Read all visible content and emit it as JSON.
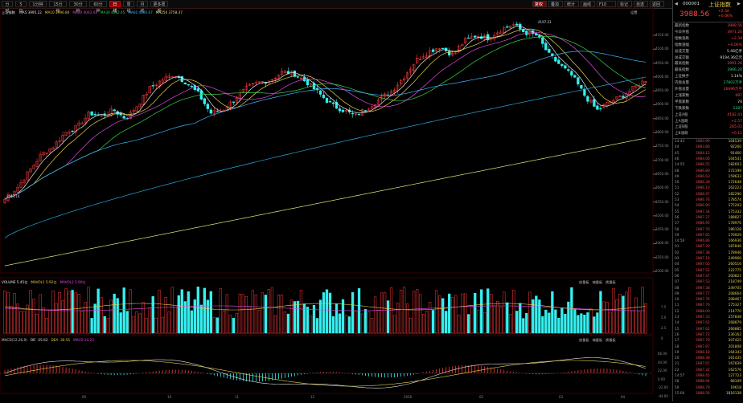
{
  "toolbar": {
    "tabs": [
      "分时",
      "5日",
      "1分钟",
      "15分钟",
      "30分钟",
      "60分钟",
      "日线",
      "周线",
      "月线",
      "更多周期"
    ],
    "active_tab": "日线",
    "right_buttons": [
      "复权",
      "叠加",
      "统计",
      "画线",
      "F10",
      "标记",
      "自选",
      "返回"
    ]
  },
  "chart": {
    "name": "上证指数",
    "ma_legend": [
      "MA5 3995.22",
      "MA10 3990.80",
      "MA20 4003.41",
      "MA30 4062.45",
      "MA60 4000.67",
      "MA250 3758.37"
    ],
    "ma_colors": [
      "#e6e6e6",
      "#e8d24a",
      "#e04ce0",
      "#3fd04a",
      "#3ab6ff",
      "#e8e07a"
    ],
    "settings_label": "设置",
    "high_label": "4197.23",
    "low_label": "3547.14",
    "price_ticks": [
      "4150.00",
      "4100.00",
      "4050.00",
      "4000.00",
      "3950.00",
      "3900.00",
      "3850.00",
      "3800.00",
      "3750.00",
      "3700.00",
      "3650.00",
      "3600.00",
      "3550.00",
      "3500.00",
      "3450.00",
      "3400.00",
      "3350.00",
      "3300.00"
    ],
    "volume_legend": [
      "VOLUME 5.45亿",
      "MAVOL1 5.92亿",
      "MAVOL2 5.90亿"
    ],
    "volume_buttons": [
      "放量板",
      "缩量板",
      "换量板"
    ],
    "volume_ticks": [
      "7.5",
      "5.0",
      "2.5",
      "0"
    ],
    "macd_legend": [
      "MACD(12,26,9)",
      "DIF -25.62",
      "DEA -30.55",
      "MACD 24.23"
    ],
    "macd_buttons": [
      "放量板",
      "缩量板",
      "换量板"
    ],
    "macd_ticks": [
      "66.00",
      "44.00",
      "22.00",
      "0.00",
      "-22.00",
      "-44.00"
    ],
    "x_labels": [
      "09",
      "10",
      "11",
      "12",
      "2026",
      "02",
      "03",
      "04"
    ],
    "bottom_right_time": "15:00"
  },
  "chart_data": {
    "type": "candlestick",
    "symbol": "上证指数",
    "price_axis": [
      3300,
      4150
    ],
    "ma_series": [
      "MA5",
      "MA10",
      "MA20",
      "MA30",
      "MA60",
      "MA250"
    ],
    "close_approx": [
      3560,
      3600,
      3660,
      3720,
      3750,
      3800,
      3820,
      3870,
      3860,
      3880,
      3850,
      3900,
      3960,
      3990,
      4010,
      3980,
      3940,
      3870,
      3880,
      3920,
      3960,
      3980,
      3990,
      4020,
      4010,
      3980,
      3940,
      3900,
      3880,
      3860,
      3890,
      3920,
      3950,
      4000,
      4060,
      4090,
      4110,
      4080,
      4130,
      4150,
      4140,
      4170,
      4190,
      4160,
      4150,
      4080,
      4040,
      4000,
      3930,
      3880,
      3910,
      3930,
      3960,
      3990
    ]
  },
  "side": {
    "code": "000001",
    "name": "上证指数",
    "price": "3988.56",
    "change": "+2.34",
    "change_pct": "+0.06%",
    "quotes": [
      {
        "k": "最新指数",
        "v": "3988.56",
        "c": "red"
      },
      {
        "k": "今日开盘",
        "v": "3971.20",
        "c": "red"
      },
      {
        "k": "指数涨跌",
        "v": "+2.34",
        "c": "red"
      },
      {
        "k": "指数涨幅",
        "v": "+0.06%",
        "c": "red"
      },
      {
        "k": "总成交量",
        "v": "5.46亿手",
        "c": "white"
      },
      {
        "k": "总成交额",
        "v": "9194.36亿元",
        "c": "white"
      },
      {
        "k": "最高指数",
        "v": "3991.26",
        "c": "red"
      },
      {
        "k": "最低指数",
        "v": "3966.20",
        "c": "green"
      },
      {
        "k": "上证换手",
        "v": "1.14%",
        "c": "white"
      },
      {
        "k": "内盘总量",
        "v": "27802万手",
        "c": "green"
      },
      {
        "k": "外盘总量",
        "v": "26696万手",
        "c": "red"
      },
      {
        "k": "上涨家数",
        "v": "987",
        "c": "red"
      },
      {
        "k": "平盘家数",
        "v": "74",
        "c": "white"
      },
      {
        "k": "下跌家数",
        "v": "1287",
        "c": "green"
      },
      {
        "k": "上证A股",
        "v": "4182.43",
        "c": "red"
      },
      {
        "k": "上A涨跌",
        "v": "+2.57",
        "c": "red"
      },
      {
        "k": "上证B股",
        "v": "265.01",
        "c": "red"
      },
      {
        "k": "上B涨跌",
        "v": "+0.11",
        "c": "red"
      }
    ],
    "ticks": [
      {
        "t": "14:43",
        "p": "3983.99",
        "v": "104539"
      },
      {
        "t": "44",
        "p": "3983.86",
        "v": "92260"
      },
      {
        "t": "45",
        "p": "3984.12",
        "v": "91460"
      },
      {
        "t": "46",
        "p": "3984.06",
        "v": "104541"
      },
      {
        "t": "14:55",
        "p": "3986.55",
        "v": "182603"
      },
      {
        "t": "48",
        "p": "3986.80",
        "v": "172199"
      },
      {
        "t": "49",
        "p": "3986.63",
        "v": "159633"
      },
      {
        "t": "50",
        "p": "3986.39",
        "v": "172648"
      },
      {
        "t": "51",
        "p": "3986.10",
        "v": "162223"
      },
      {
        "t": "52",
        "p": "3986.97",
        "v": "182290"
      },
      {
        "t": "53",
        "p": "3986.76",
        "v": "178574"
      },
      {
        "t": "54",
        "p": "3986.96",
        "v": "175203"
      },
      {
        "t": "55",
        "p": "3987.34",
        "v": "175332"
      },
      {
        "t": "56",
        "p": "3987.27",
        "v": "188827"
      },
      {
        "t": "57",
        "p": "3986.95",
        "v": "178976"
      },
      {
        "t": "58",
        "p": "3987.76",
        "v": "186128"
      },
      {
        "t": "59",
        "p": "3987.65",
        "v": "176929"
      },
      {
        "t": "14:56",
        "p": "3986.86",
        "v": "166936"
      },
      {
        "t": "01",
        "p": "3987.29",
        "v": "187846"
      },
      {
        "t": "02",
        "p": "3987.38",
        "v": "178946"
      },
      {
        "t": "03",
        "p": "3987.18",
        "v": "249966"
      },
      {
        "t": "04",
        "p": "3987.05",
        "v": "260516"
      },
      {
        "t": "05",
        "p": "3987.52",
        "v": "222775"
      },
      {
        "t": "06",
        "p": "3987.47",
        "v": "200821"
      },
      {
        "t": "07",
        "p": "3987.53",
        "v": "218749"
      },
      {
        "t": "08",
        "p": "3987.38",
        "v": "249705"
      },
      {
        "t": "09",
        "p": "3987.77",
        "v": "208664"
      },
      {
        "t": "10",
        "p": "3987.76",
        "v": "208467"
      },
      {
        "t": "11",
        "p": "3987.76",
        "v": "175327"
      },
      {
        "t": "12",
        "p": "3988.00",
        "v": "214770"
      },
      {
        "t": "13",
        "p": "3987.33",
        "v": "257848"
      },
      {
        "t": "14",
        "p": "3987.62",
        "v": "268879"
      },
      {
        "t": "15",
        "p": "3987.62",
        "v": "266885"
      },
      {
        "t": "16",
        "p": "3987.72",
        "v": "236162"
      },
      {
        "t": "17",
        "p": "3987.79",
        "v": "207425"
      },
      {
        "t": "18",
        "p": "3987.87",
        "v": "201808"
      },
      {
        "t": "19",
        "p": "3988.18",
        "v": "164343"
      },
      {
        "t": "20",
        "p": "3988.36",
        "v": "161435"
      },
      {
        "t": "21",
        "p": "3987.67",
        "v": "167839"
      },
      {
        "t": "22",
        "p": "3987.32",
        "v": "162576"
      },
      {
        "t": "14:57",
        "p": "3988.45",
        "v": "127723"
      },
      {
        "t": "58",
        "p": "3988.94",
        "v": "68109"
      },
      {
        "t": "59",
        "p": "3988.79",
        "v": "19618"
      },
      {
        "t": "15:00",
        "p": "3988.56",
        "v": "1816138"
      }
    ]
  }
}
